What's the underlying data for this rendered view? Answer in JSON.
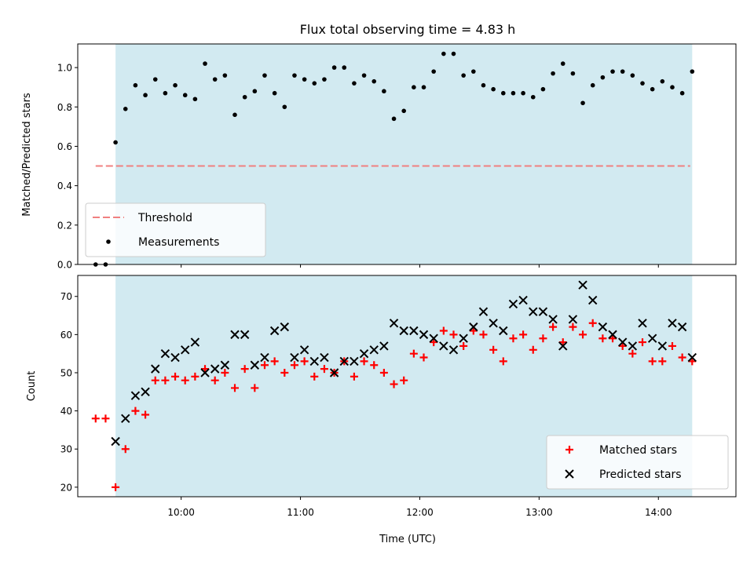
{
  "chart_data": {
    "type": "scatter",
    "title": "Flux total observing time = 4.83 h",
    "xlabel": "Time (UTC)",
    "x_ticks": [
      "10:00",
      "11:00",
      "12:00",
      "13:00",
      "14:00"
    ],
    "observing_window": {
      "start": "09:27",
      "end": "14:17",
      "color": "#add8e6"
    },
    "panels": [
      {
        "ylabel": "Matched/Predicted stars",
        "ylim": [
          0,
          1.12
        ],
        "y_ticks": [
          "0.0",
          "0.2",
          "0.4",
          "0.6",
          "0.8",
          "1.0"
        ],
        "legend_position": "lower-left",
        "threshold": {
          "name": "Threshold",
          "value": 0.5,
          "x_start": "09:17",
          "x_end": "14:16",
          "color": "#f08080"
        },
        "series": [
          {
            "name": "Measurements",
            "marker": "dot",
            "color": "#000000",
            "points": [
              [
                "09:17",
                0.0
              ],
              [
                "09:22",
                0.0
              ],
              [
                "09:27",
                0.62
              ],
              [
                "09:32",
                0.79
              ],
              [
                "09:37",
                0.91
              ],
              [
                "09:42",
                0.86
              ],
              [
                "09:47",
                0.94
              ],
              [
                "09:52",
                0.87
              ],
              [
                "09:57",
                0.91
              ],
              [
                "10:02",
                0.86
              ],
              [
                "10:07",
                0.84
              ],
              [
                "10:12",
                1.02
              ],
              [
                "10:17",
                0.94
              ],
              [
                "10:22",
                0.96
              ],
              [
                "10:27",
                0.76
              ],
              [
                "10:32",
                0.85
              ],
              [
                "10:37",
                0.88
              ],
              [
                "10:42",
                0.96
              ],
              [
                "10:47",
                0.87
              ],
              [
                "10:52",
                0.8
              ],
              [
                "10:57",
                0.96
              ],
              [
                "11:02",
                0.94
              ],
              [
                "11:07",
                0.92
              ],
              [
                "11:12",
                0.94
              ],
              [
                "11:17",
                1.0
              ],
              [
                "11:22",
                1.0
              ],
              [
                "11:27",
                0.92
              ],
              [
                "11:32",
                0.96
              ],
              [
                "11:37",
                0.93
              ],
              [
                "11:42",
                0.88
              ],
              [
                "11:47",
                0.74
              ],
              [
                "11:52",
                0.78
              ],
              [
                "11:57",
                0.9
              ],
              [
                "12:02",
                0.9
              ],
              [
                "12:07",
                0.98
              ],
              [
                "12:12",
                1.07
              ],
              [
                "12:17",
                1.07
              ],
              [
                "12:22",
                0.96
              ],
              [
                "12:27",
                0.98
              ],
              [
                "12:32",
                0.91
              ],
              [
                "12:37",
                0.89
              ],
              [
                "12:42",
                0.87
              ],
              [
                "12:47",
                0.87
              ],
              [
                "12:52",
                0.87
              ],
              [
                "12:57",
                0.85
              ],
              [
                "13:02",
                0.89
              ],
              [
                "13:07",
                0.97
              ],
              [
                "13:12",
                1.02
              ],
              [
                "13:17",
                0.97
              ],
              [
                "13:22",
                0.82
              ],
              [
                "13:27",
                0.91
              ],
              [
                "13:32",
                0.95
              ],
              [
                "13:37",
                0.98
              ],
              [
                "13:42",
                0.98
              ],
              [
                "13:47",
                0.96
              ],
              [
                "13:52",
                0.92
              ],
              [
                "13:57",
                0.89
              ],
              [
                "14:02",
                0.93
              ],
              [
                "14:07",
                0.9
              ],
              [
                "14:12",
                0.87
              ],
              [
                "14:17",
                0.98
              ]
            ]
          }
        ]
      },
      {
        "ylabel": "Count",
        "ylim": [
          17.5,
          75.5
        ],
        "y_ticks": [
          "20",
          "30",
          "40",
          "50",
          "60",
          "70"
        ],
        "legend_position": "lower-right",
        "series": [
          {
            "name": "Matched stars",
            "marker": "plus",
            "color": "#ff0000",
            "points": [
              [
                "09:17",
                38
              ],
              [
                "09:22",
                38
              ],
              [
                "09:27",
                20
              ],
              [
                "09:32",
                30
              ],
              [
                "09:37",
                40
              ],
              [
                "09:42",
                39
              ],
              [
                "09:47",
                48
              ],
              [
                "09:52",
                48
              ],
              [
                "09:57",
                49
              ],
              [
                "10:02",
                48
              ],
              [
                "10:07",
                49
              ],
              [
                "10:12",
                51
              ],
              [
                "10:17",
                48
              ],
              [
                "10:22",
                50
              ],
              [
                "10:27",
                46
              ],
              [
                "10:32",
                51
              ],
              [
                "10:37",
                46
              ],
              [
                "10:42",
                52
              ],
              [
                "10:47",
                53
              ],
              [
                "10:52",
                50
              ],
              [
                "10:57",
                52
              ],
              [
                "11:02",
                53
              ],
              [
                "11:07",
                49
              ],
              [
                "11:12",
                51
              ],
              [
                "11:17",
                50
              ],
              [
                "11:22",
                53
              ],
              [
                "11:27",
                49
              ],
              [
                "11:32",
                53
              ],
              [
                "11:37",
                52
              ],
              [
                "11:42",
                50
              ],
              [
                "11:47",
                47
              ],
              [
                "11:52",
                48
              ],
              [
                "11:57",
                55
              ],
              [
                "12:02",
                54
              ],
              [
                "12:07",
                58
              ],
              [
                "12:12",
                61
              ],
              [
                "12:17",
                60
              ],
              [
                "12:22",
                57
              ],
              [
                "12:27",
                61
              ],
              [
                "12:32",
                60
              ],
              [
                "12:37",
                56
              ],
              [
                "12:42",
                53
              ],
              [
                "12:47",
                59
              ],
              [
                "12:52",
                60
              ],
              [
                "12:57",
                56
              ],
              [
                "13:02",
                59
              ],
              [
                "13:07",
                62
              ],
              [
                "13:12",
                58
              ],
              [
                "13:17",
                62
              ],
              [
                "13:22",
                60
              ],
              [
                "13:27",
                63
              ],
              [
                "13:32",
                59
              ],
              [
                "13:37",
                59
              ],
              [
                "13:42",
                57
              ],
              [
                "13:47",
                55
              ],
              [
                "13:52",
                58
              ],
              [
                "13:57",
                53
              ],
              [
                "14:02",
                53
              ],
              [
                "14:07",
                57
              ],
              [
                "14:12",
                54
              ],
              [
                "14:17",
                53
              ]
            ]
          },
          {
            "name": "Predicted stars",
            "marker": "cross",
            "color": "#000000",
            "points": [
              [
                "09:27",
                32
              ],
              [
                "09:32",
                38
              ],
              [
                "09:37",
                44
              ],
              [
                "09:42",
                45
              ],
              [
                "09:47",
                51
              ],
              [
                "09:52",
                55
              ],
              [
                "09:57",
                54
              ],
              [
                "10:02",
                56
              ],
              [
                "10:07",
                58
              ],
              [
                "10:12",
                50
              ],
              [
                "10:17",
                51
              ],
              [
                "10:22",
                52
              ],
              [
                "10:27",
                60
              ],
              [
                "10:32",
                60
              ],
              [
                "10:37",
                52
              ],
              [
                "10:42",
                54
              ],
              [
                "10:47",
                61
              ],
              [
                "10:52",
                62
              ],
              [
                "10:57",
                54
              ],
              [
                "11:02",
                56
              ],
              [
                "11:07",
                53
              ],
              [
                "11:12",
                54
              ],
              [
                "11:17",
                50
              ],
              [
                "11:22",
                53
              ],
              [
                "11:27",
                53
              ],
              [
                "11:32",
                55
              ],
              [
                "11:37",
                56
              ],
              [
                "11:42",
                57
              ],
              [
                "11:47",
                63
              ],
              [
                "11:52",
                61
              ],
              [
                "11:57",
                61
              ],
              [
                "12:02",
                60
              ],
              [
                "12:07",
                59
              ],
              [
                "12:12",
                57
              ],
              [
                "12:17",
                56
              ],
              [
                "12:22",
                59
              ],
              [
                "12:27",
                62
              ],
              [
                "12:32",
                66
              ],
              [
                "12:37",
                63
              ],
              [
                "12:42",
                61
              ],
              [
                "12:47",
                68
              ],
              [
                "12:52",
                69
              ],
              [
                "12:57",
                66
              ],
              [
                "13:02",
                66
              ],
              [
                "13:07",
                64
              ],
              [
                "13:12",
                57
              ],
              [
                "13:17",
                64
              ],
              [
                "13:22",
                73
              ],
              [
                "13:27",
                69
              ],
              [
                "13:32",
                62
              ],
              [
                "13:37",
                60
              ],
              [
                "13:42",
                58
              ],
              [
                "13:47",
                57
              ],
              [
                "13:52",
                63
              ],
              [
                "13:57",
                59
              ],
              [
                "14:02",
                57
              ],
              [
                "14:07",
                63
              ],
              [
                "14:12",
                62
              ],
              [
                "14:17",
                54
              ]
            ]
          }
        ]
      }
    ]
  }
}
